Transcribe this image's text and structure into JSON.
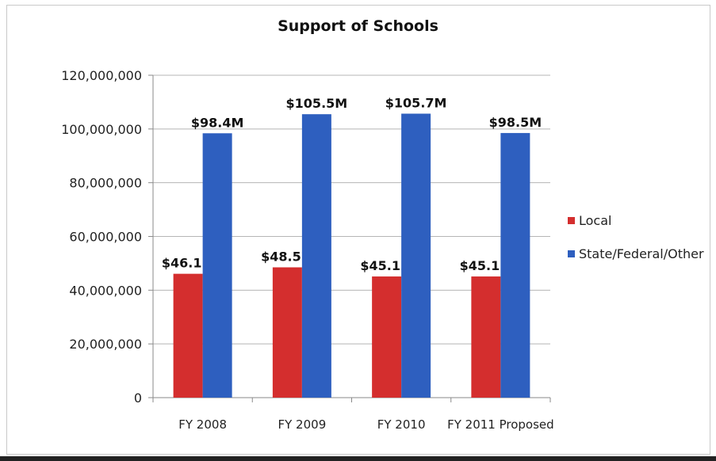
{
  "chart_data": {
    "type": "bar",
    "title": "Support of Schools",
    "categories": [
      "FY 2008",
      "FY 2009",
      "FY 2010",
      "FY 2011 Proposed"
    ],
    "series": [
      {
        "name": "Local",
        "color": "#d42e2e",
        "values": [
          46100000,
          48500000,
          45100000,
          45100000
        ],
        "labels": [
          "$46.1M",
          "$48.5M",
          "$45.1M",
          "$45.1M"
        ]
      },
      {
        "name": "State/Federal/Other",
        "color": "#2e5fbf",
        "values": [
          98400000,
          105500000,
          105700000,
          98500000
        ],
        "labels": [
          "$98.4M",
          "$105.5M",
          "$105.7M",
          "$98.5M"
        ]
      }
    ],
    "yticks": [
      "0",
      "20,000,000",
      "40,000,000",
      "60,000,000",
      "80,000,000",
      "100,000,000",
      "120,000,000"
    ],
    "ylim": [
      0,
      120000000
    ],
    "xlabel": "",
    "ylabel": "",
    "grid": true,
    "legend_position": "right"
  }
}
